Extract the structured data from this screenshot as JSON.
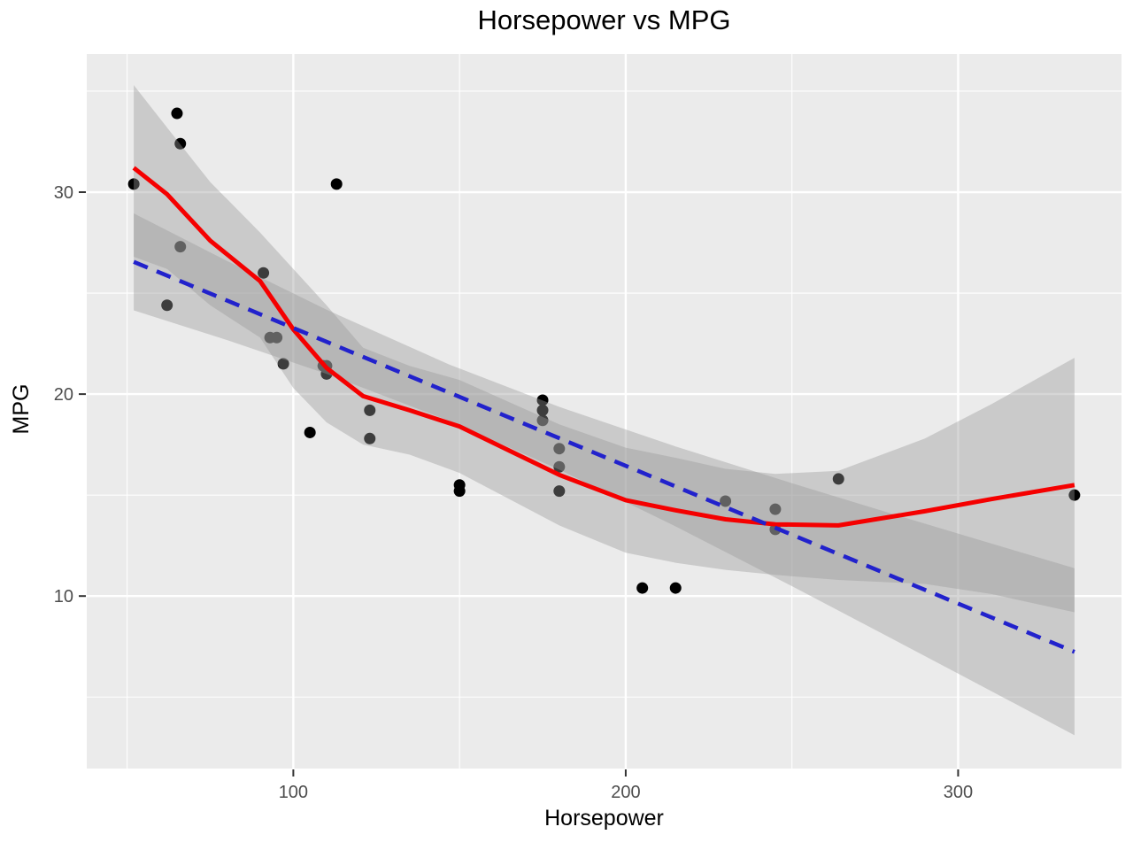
{
  "title": "Horsepower vs MPG",
  "x_axis": {
    "label": "Horsepower",
    "major_ticks": [
      100,
      200,
      300
    ],
    "minor_ticks": [
      50,
      150,
      250
    ],
    "domain": [
      37.85,
      349.15
    ]
  },
  "y_axis": {
    "label": "MPG",
    "major_ticks": [
      10,
      20,
      30
    ],
    "minor_ticks": [
      5,
      15,
      25,
      35
    ],
    "domain": [
      1.46,
      36.84
    ]
  },
  "colors": {
    "panel_bg": "#EBEBEB",
    "grid": "#FFFFFF",
    "tick_mark": "#333333",
    "tick_label": "#4D4D4D",
    "point": "#000000",
    "ribbon": "#999999",
    "loess_line": "#F50000",
    "lm_line": "#2222CC"
  },
  "chart_data": {
    "type": "scatter",
    "xlabel": "Horsepower",
    "ylabel": "MPG",
    "points": [
      [
        110,
        21.0
      ],
      [
        110,
        21.0
      ],
      [
        93,
        22.8
      ],
      [
        110,
        21.4
      ],
      [
        175,
        18.7
      ],
      [
        105,
        18.1
      ],
      [
        245,
        14.3
      ],
      [
        62,
        24.4
      ],
      [
        95,
        22.8
      ],
      [
        123,
        19.2
      ],
      [
        123,
        17.8
      ],
      [
        180,
        16.4
      ],
      [
        180,
        17.3
      ],
      [
        180,
        15.2
      ],
      [
        205,
        10.4
      ],
      [
        215,
        10.4
      ],
      [
        230,
        14.7
      ],
      [
        66,
        32.4
      ],
      [
        52,
        30.4
      ],
      [
        65,
        33.9
      ],
      [
        97,
        21.5
      ],
      [
        150,
        15.5
      ],
      [
        150,
        15.2
      ],
      [
        245,
        13.3
      ],
      [
        175,
        19.2
      ],
      [
        66,
        27.3
      ],
      [
        91,
        26.0
      ],
      [
        113,
        30.4
      ],
      [
        264,
        15.8
      ],
      [
        175,
        19.7
      ],
      [
        335,
        15.0
      ],
      [
        109,
        21.4
      ]
    ],
    "ribbons": [
      {
        "name": "loess-ci-ribbon",
        "x": [
          52,
          62,
          75,
          90,
          100,
          110,
          121,
          135,
          150,
          165,
          180,
          200,
          215,
          230,
          245,
          264,
          290,
          310,
          335
        ],
        "upper": [
          35.3,
          33.2,
          30.5,
          28.0,
          26.2,
          24.4,
          22.3,
          21.4,
          20.7,
          19.6,
          18.5,
          17.35,
          16.85,
          16.3,
          16.05,
          16.2,
          17.8,
          19.5,
          21.8
        ],
        "lower": [
          26.8,
          26.2,
          24.4,
          22.8,
          20.3,
          18.6,
          17.5,
          17.0,
          16.1,
          14.8,
          13.5,
          12.15,
          11.65,
          11.3,
          11.05,
          10.8,
          10.6,
          10.1,
          9.2
        ]
      },
      {
        "name": "lm-ci-ribbon",
        "x": [
          52,
          80,
          110,
          146.7,
          180,
          215,
          250,
          280,
          310,
          335
        ],
        "upper": [
          28.95,
          26.6,
          24.18,
          21.48,
          19.37,
          17.41,
          15.59,
          14.08,
          12.6,
          11.38
        ],
        "lower": [
          24.15,
          22.68,
          21.0,
          18.69,
          16.26,
          13.45,
          10.49,
          7.9,
          5.29,
          3.11
        ]
      }
    ],
    "series": [
      {
        "name": "loess-smooth",
        "style": "solid",
        "x": [
          52,
          62,
          75,
          90,
          100,
          110,
          121,
          135,
          150,
          165,
          180,
          200,
          215,
          230,
          245,
          264,
          290,
          310,
          335
        ],
        "y": [
          31.2,
          29.9,
          27.6,
          25.6,
          23.2,
          21.3,
          19.9,
          19.2,
          18.4,
          17.2,
          16.0,
          14.75,
          14.25,
          13.8,
          13.55,
          13.5,
          14.2,
          14.8,
          15.5
        ]
      },
      {
        "name": "linear-fit",
        "style": "dashed",
        "x": [
          52,
          335
        ],
        "y": [
          26.55,
          7.24
        ]
      }
    ]
  }
}
